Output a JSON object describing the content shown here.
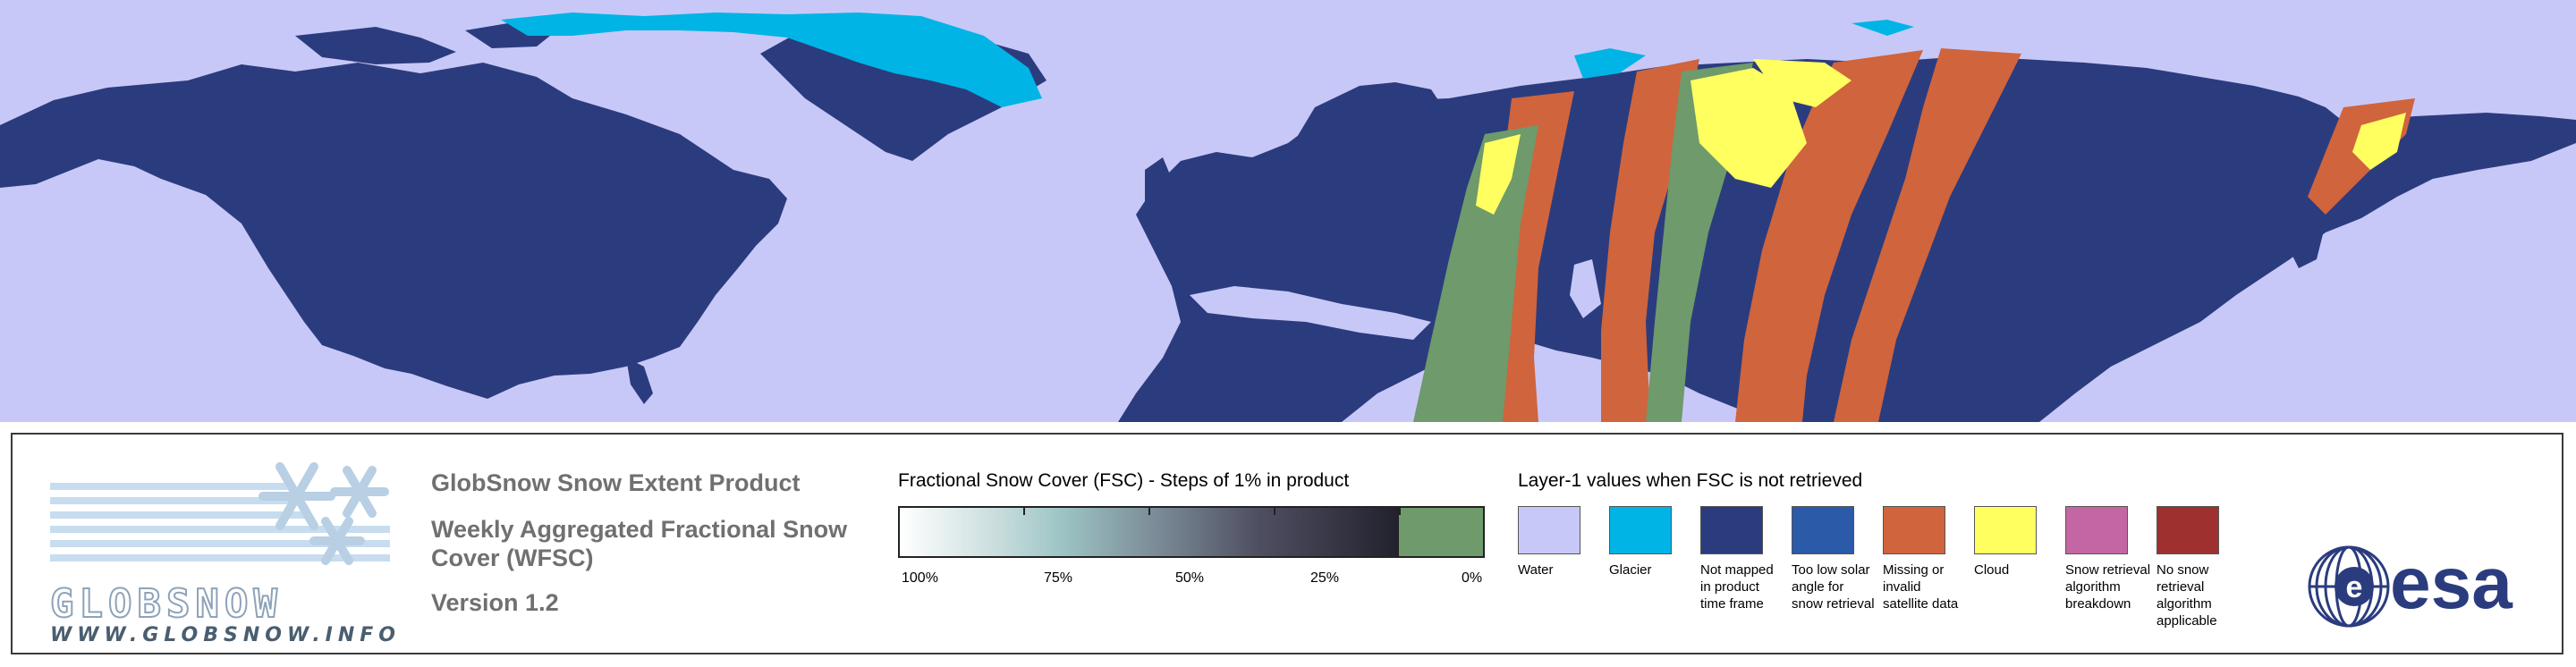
{
  "map": {
    "colors": {
      "water": "#c8c8f8",
      "not_mapped": "#2b3c7e",
      "glacier": "#00b4e6",
      "missing": "#d0643c",
      "cloud": "#ffff60",
      "fsc_zero": "#6e9a6c"
    }
  },
  "logo": {
    "wordmark": "GLOBSNOW",
    "url": "WWW.GLOBSNOW.INFO",
    "icon": "snowflake-icon"
  },
  "product": {
    "title": "GlobSnow Snow Extent Product",
    "subtitle_line1": "Weekly Aggregated Fractional Snow",
    "subtitle_line2": "Cover (WFSC)",
    "version": "Version 1.2"
  },
  "fsc_legend": {
    "title": "Fractional Snow Cover (FSC) - Steps of 1% in product",
    "tick_labels": [
      "100%",
      "75%",
      "50%",
      "25%",
      "0%"
    ]
  },
  "layer1_legend": {
    "title": "Layer-1 values when FSC is not retrieved",
    "items": [
      {
        "label": "Water",
        "color": "#c8c8f8"
      },
      {
        "label": "Glacier",
        "color": "#00b4e6"
      },
      {
        "label": "Not mapped in product time frame",
        "color": "#2b3c7e"
      },
      {
        "label": "Too low solar angle for snow retrieval",
        "color": "#2a5aa8"
      },
      {
        "label": "Missing or invalid satellite data",
        "color": "#d0643c"
      },
      {
        "label": "Cloud",
        "color": "#ffff60"
      },
      {
        "label": "Snow retrieval algorithm breakdown",
        "color": "#c466a4"
      },
      {
        "label": "No snow retrieval algorithm applicable",
        "color": "#9e3030"
      }
    ]
  },
  "esa_logo": {
    "text": "esa"
  }
}
